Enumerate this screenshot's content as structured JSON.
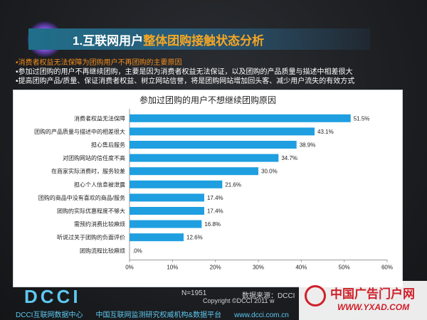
{
  "header": {
    "title_prefix": "1.互联网用户",
    "title_highlight": "整体团购接触状态分析"
  },
  "bullets": [
    "•消费者权益无法保障为团购用户不再团购的主要原因",
    "•参加过团购的用户不再继续团购，主要是因为消费者权益无法保证，以及团购的产品质量与描述中相差很大",
    "•提高团购产品/质量、保证消费者权益、树立网站信誉，将是团购网站增加回头客、减少用户流失的有效方式"
  ],
  "chart_data": {
    "type": "bar",
    "orientation": "horizontal",
    "title": "参加过团购的用户不想继续团购原因",
    "categories": [
      "消费者权益无法保障",
      "团购的产品质量与描述中的相差很大",
      "担心售后服务",
      "对团购网站的信任度不高",
      "在商家实际消费时，服务较差",
      "担心个人信息被泄露",
      "团购的商品中没有喜欢的商品/服务",
      "团购的实际优惠程度不够大",
      "需预约消费比较麻烦",
      "听说过关于团购的负面评价",
      "团购流程比较麻烦"
    ],
    "values": [
      51.5,
      43.1,
      38.9,
      34.7,
      30.0,
      21.6,
      17.4,
      17.4,
      16.8,
      12.6,
      0
    ],
    "value_labels": [
      "51.5%",
      "43.1%",
      "38.9%",
      "34.7%",
      "30.0%",
      "21.6%",
      "17.4%",
      "17.4%",
      "16.8%",
      "12.6%",
      ".0%"
    ],
    "xlim": [
      0,
      60
    ],
    "xticks": [
      "0%",
      "10%",
      "20%",
      "30%",
      "40%",
      "50%",
      "60%"
    ],
    "bar_color": "#1f9fe0",
    "grid": false
  },
  "footer": {
    "stats": "N=1951",
    "source": "数据来源：DCCI",
    "copyright": "Copyright ©DCCI 2011 w",
    "logo": "DCCI",
    "links": [
      "DCCI互联网数据中心",
      "中国互联网监测研究权威机构&数据平台",
      "www.dcci.com.cn"
    ]
  },
  "watermark": {
    "name": "中国广告门户网",
    "url": "WWW.YXAD.COM"
  }
}
